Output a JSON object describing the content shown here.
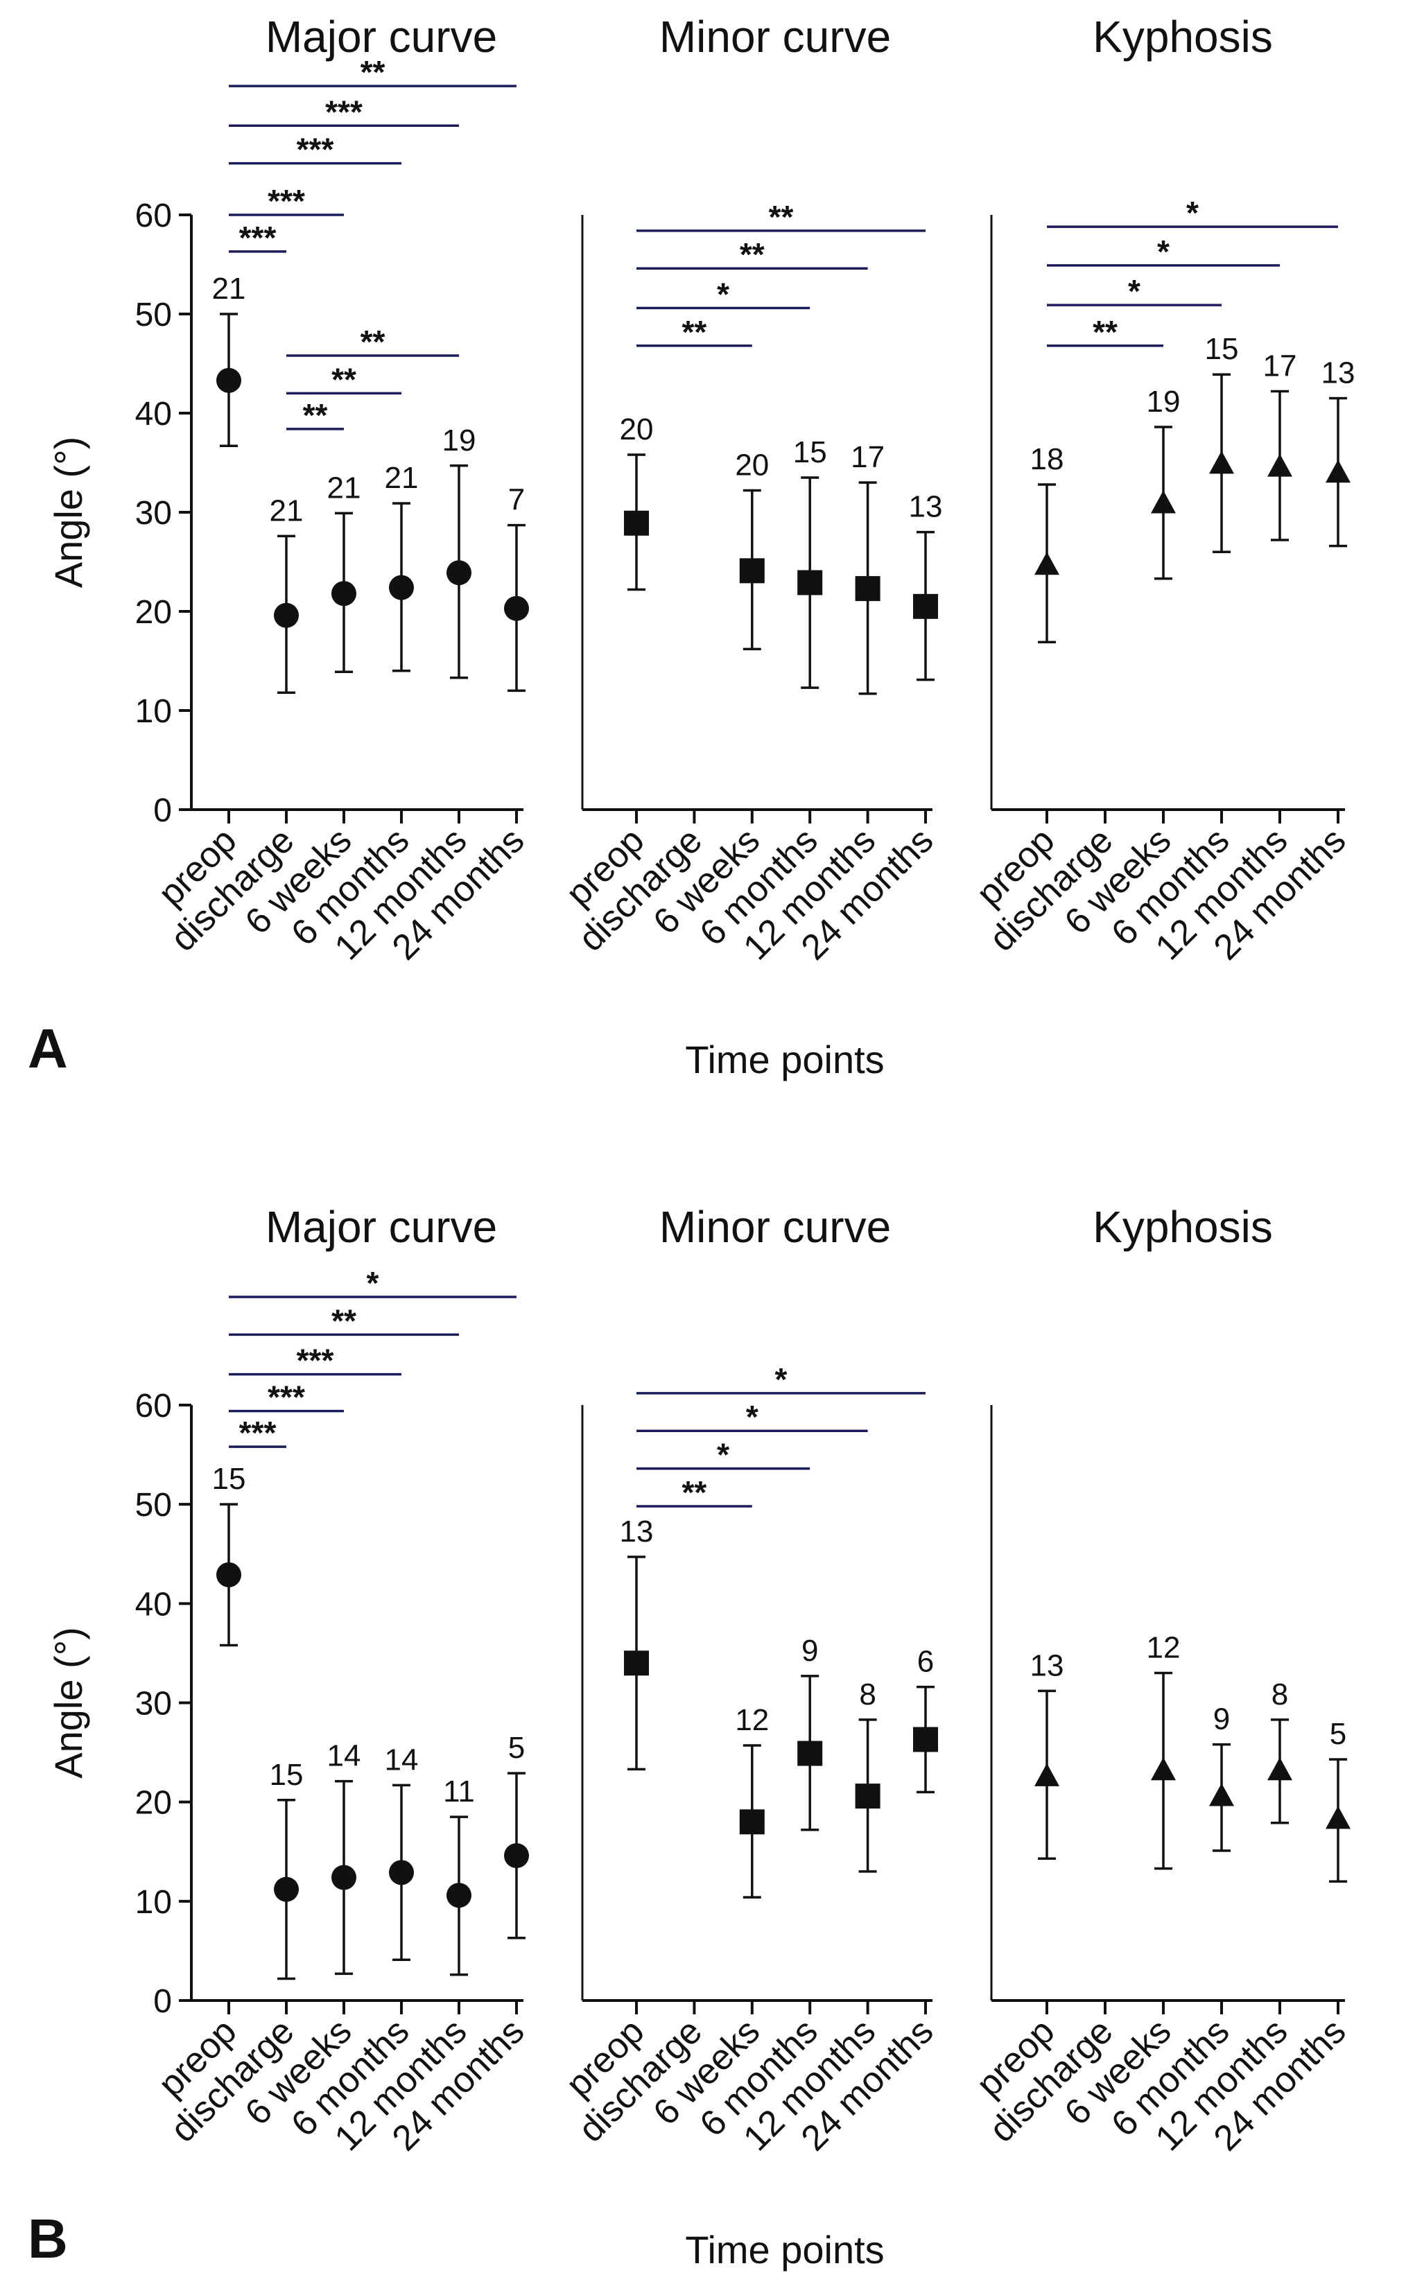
{
  "chart_data": [
    {
      "panel_label": "A",
      "type": "errorbar-scatter",
      "ylabel": "Angle (°)",
      "xlabel": "Time points",
      "ylim": [
        0,
        60
      ],
      "yticks": [
        "0",
        "10",
        "20",
        "30",
        "40",
        "50",
        "60"
      ],
      "categories": [
        "preop",
        "discharge",
        "6 weeks",
        "6 months",
        "12 months",
        "24 months"
      ],
      "groups": [
        {
          "title": "Major curve",
          "marker": "circle",
          "points": [
            {
              "cat": 0,
              "mean": 43.3,
              "low": 36.7,
              "high": 50.0,
              "n": "21"
            },
            {
              "cat": 1,
              "mean": 19.6,
              "low": 11.8,
              "high": 27.6,
              "n": "21"
            },
            {
              "cat": 2,
              "mean": 21.8,
              "low": 13.9,
              "high": 29.9,
              "n": "21"
            },
            {
              "cat": 3,
              "mean": 22.4,
              "low": 14.0,
              "high": 30.9,
              "n": "21"
            },
            {
              "cat": 4,
              "mean": 23.9,
              "low": 13.3,
              "high": 34.7,
              "n": "19"
            },
            {
              "cat": 5,
              "mean": 20.3,
              "low": 12.0,
              "high": 28.7,
              "n": "7"
            }
          ],
          "comparisons": [
            {
              "from": 0,
              "to": 5,
              "label": "**",
              "level": 73.0
            },
            {
              "from": 0,
              "to": 4,
              "label": "***",
              "level": 69.0
            },
            {
              "from": 0,
              "to": 3,
              "label": "***",
              "level": 65.2
            },
            {
              "from": 0,
              "to": 2,
              "label": "***",
              "level": 60.0
            },
            {
              "from": 0,
              "to": 1,
              "label": "***",
              "level": 56.3
            },
            {
              "from": 1,
              "to": 4,
              "label": "**",
              "level": 45.8
            },
            {
              "from": 1,
              "to": 3,
              "label": "**",
              "level": 42.0
            },
            {
              "from": 1,
              "to": 2,
              "label": "**",
              "level": 38.4
            }
          ]
        },
        {
          "title": "Minor curve",
          "marker": "square",
          "points": [
            {
              "cat": 0,
              "mean": 28.9,
              "low": 22.2,
              "high": 35.8,
              "n": "20"
            },
            {
              "cat": 2,
              "mean": 24.1,
              "low": 16.2,
              "high": 32.2,
              "n": "20"
            },
            {
              "cat": 3,
              "mean": 22.9,
              "low": 12.3,
              "high": 33.5,
              "n": "15"
            },
            {
              "cat": 4,
              "mean": 22.3,
              "low": 11.7,
              "high": 33.0,
              "n": "17"
            },
            {
              "cat": 5,
              "mean": 20.5,
              "low": 13.1,
              "high": 28.0,
              "n": "13"
            }
          ],
          "comparisons": [
            {
              "from": 0,
              "to": 5,
              "label": "**",
              "level": 58.4
            },
            {
              "from": 0,
              "to": 4,
              "label": "**",
              "level": 54.6
            },
            {
              "from": 0,
              "to": 3,
              "label": "*",
              "level": 50.6
            },
            {
              "from": 0,
              "to": 2,
              "label": "**",
              "level": 46.8
            }
          ]
        },
        {
          "title": "Kyphosis",
          "marker": "triangle",
          "points": [
            {
              "cat": 0,
              "mean": 24.6,
              "low": 16.9,
              "high": 32.8,
              "n": "18"
            },
            {
              "cat": 2,
              "mean": 30.8,
              "low": 23.3,
              "high": 38.6,
              "n": "19"
            },
            {
              "cat": 3,
              "mean": 34.8,
              "low": 26.0,
              "high": 43.9,
              "n": "15"
            },
            {
              "cat": 4,
              "mean": 34.5,
              "low": 27.2,
              "high": 42.2,
              "n": "17"
            },
            {
              "cat": 5,
              "mean": 33.9,
              "low": 26.6,
              "high": 41.5,
              "n": "13"
            }
          ],
          "comparisons": [
            {
              "from": 0,
              "to": 5,
              "label": "*",
              "level": 58.8
            },
            {
              "from": 0,
              "to": 4,
              "label": "*",
              "level": 54.9
            },
            {
              "from": 0,
              "to": 3,
              "label": "*",
              "level": 50.9
            },
            {
              "from": 0,
              "to": 2,
              "label": "**",
              "level": 46.8
            }
          ]
        }
      ]
    },
    {
      "panel_label": "B",
      "type": "errorbar-scatter",
      "ylabel": "Angle (°)",
      "xlabel": "Time points",
      "ylim": [
        0,
        60
      ],
      "yticks": [
        "0",
        "10",
        "20",
        "30",
        "40",
        "50",
        "60"
      ],
      "categories": [
        "preop",
        "discharge",
        "6 weeks",
        "6 months",
        "12 months",
        "24 months"
      ],
      "groups": [
        {
          "title": "Major curve",
          "marker": "circle",
          "points": [
            {
              "cat": 0,
              "mean": 42.9,
              "low": 35.8,
              "high": 50.0,
              "n": "15"
            },
            {
              "cat": 1,
              "mean": 11.2,
              "low": 2.2,
              "high": 20.2,
              "n": "15"
            },
            {
              "cat": 2,
              "mean": 12.4,
              "low": 2.7,
              "high": 22.1,
              "n": "14"
            },
            {
              "cat": 3,
              "mean": 12.9,
              "low": 4.1,
              "high": 21.7,
              "n": "14"
            },
            {
              "cat": 4,
              "mean": 10.6,
              "low": 2.6,
              "high": 18.5,
              "n": "11"
            },
            {
              "cat": 5,
              "mean": 14.6,
              "low": 6.3,
              "high": 22.9,
              "n": "5"
            }
          ],
          "comparisons": [
            {
              "from": 0,
              "to": 5,
              "label": "*",
              "level": 70.9
            },
            {
              "from": 0,
              "to": 4,
              "label": "**",
              "level": 67.1
            },
            {
              "from": 0,
              "to": 3,
              "label": "***",
              "level": 63.1
            },
            {
              "from": 0,
              "to": 2,
              "label": "***",
              "level": 59.4
            },
            {
              "from": 0,
              "to": 1,
              "label": "***",
              "level": 55.8
            }
          ]
        },
        {
          "title": "Minor curve",
          "marker": "square",
          "points": [
            {
              "cat": 0,
              "mean": 34.0,
              "low": 23.3,
              "high": 44.7,
              "n": "13"
            },
            {
              "cat": 2,
              "mean": 18.0,
              "low": 10.4,
              "high": 25.7,
              "n": "12"
            },
            {
              "cat": 3,
              "mean": 24.9,
              "low": 17.2,
              "high": 32.7,
              "n": "9"
            },
            {
              "cat": 4,
              "mean": 20.6,
              "low": 13.0,
              "high": 28.3,
              "n": "8"
            },
            {
              "cat": 5,
              "mean": 26.3,
              "low": 21.0,
              "high": 31.6,
              "n": "6"
            }
          ],
          "comparisons": [
            {
              "from": 0,
              "to": 5,
              "label": "*",
              "level": 61.2
            },
            {
              "from": 0,
              "to": 4,
              "label": "*",
              "level": 57.4
            },
            {
              "from": 0,
              "to": 3,
              "label": "*",
              "level": 53.6
            },
            {
              "from": 0,
              "to": 2,
              "label": "**",
              "level": 49.8
            }
          ]
        },
        {
          "title": "Kyphosis",
          "marker": "triangle",
          "points": [
            {
              "cat": 0,
              "mean": 22.5,
              "low": 14.3,
              "high": 31.2,
              "n": "13"
            },
            {
              "cat": 2,
              "mean": 23.1,
              "low": 13.3,
              "high": 33.0,
              "n": "12"
            },
            {
              "cat": 3,
              "mean": 20.5,
              "low": 15.1,
              "high": 25.8,
              "n": "9"
            },
            {
              "cat": 4,
              "mean": 23.1,
              "low": 17.9,
              "high": 28.3,
              "n": "8"
            },
            {
              "cat": 5,
              "mean": 18.2,
              "low": 12.0,
              "high": 24.3,
              "n": "5"
            }
          ],
          "comparisons": []
        }
      ]
    }
  ]
}
